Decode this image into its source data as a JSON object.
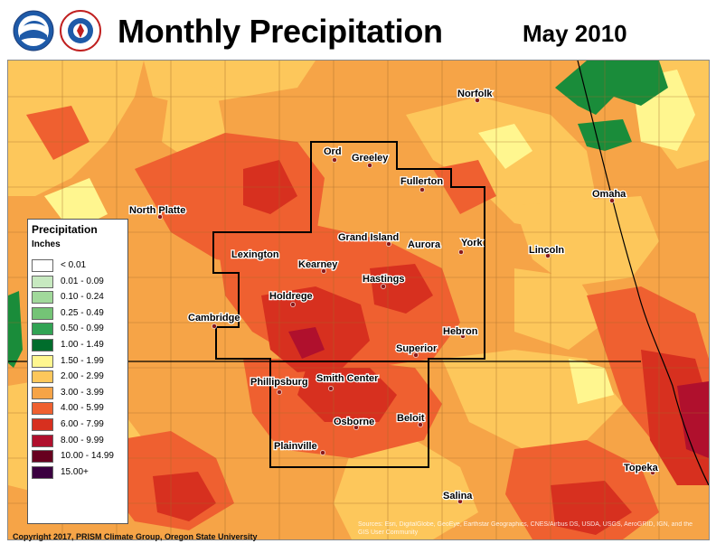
{
  "title": "Monthly Precipitation",
  "date": "May 2010",
  "legend": {
    "title": "Precipitation",
    "units": "Inches",
    "items": [
      {
        "label": "< 0.01",
        "color": "#ffffff"
      },
      {
        "label": "0.01 - 0.09",
        "color": "#c7e9c0"
      },
      {
        "label": "0.10 - 0.24",
        "color": "#a1d99b"
      },
      {
        "label": "0.25 - 0.49",
        "color": "#74c476"
      },
      {
        "label": "0.50 - 0.99",
        "color": "#31a354"
      },
      {
        "label": "1.00 - 1.49",
        "color": "#006d2c"
      },
      {
        "label": "1.50 - 1.99",
        "color": "#fff68f"
      },
      {
        "label": "2.00 - 2.99",
        "color": "#fdc75b"
      },
      {
        "label": "3.00 - 3.99",
        "color": "#f6a447"
      },
      {
        "label": "4.00 - 5.99",
        "color": "#ef6030"
      },
      {
        "label": "6.00 - 7.99",
        "color": "#d7301f"
      },
      {
        "label": "8.00 - 9.99",
        "color": "#b0102d"
      },
      {
        "label": "10.00 - 14.99",
        "color": "#67001f"
      },
      {
        "label": "15.00+",
        "color": "#3b0040"
      }
    ]
  },
  "cities": [
    {
      "name": "Norfolk"
    },
    {
      "name": "Ord"
    },
    {
      "name": "Greeley"
    },
    {
      "name": "Fullerton"
    },
    {
      "name": "North Platte"
    },
    {
      "name": "Omaha"
    },
    {
      "name": "Grand Island"
    },
    {
      "name": "Aurora"
    },
    {
      "name": "York"
    },
    {
      "name": "Lexington"
    },
    {
      "name": "Kearney"
    },
    {
      "name": "Lincoln"
    },
    {
      "name": "Hastings"
    },
    {
      "name": "Holdrege"
    },
    {
      "name": "Cambridge"
    },
    {
      "name": "Hebron"
    },
    {
      "name": "Superior"
    },
    {
      "name": "Phillipsburg"
    },
    {
      "name": "Smith Center"
    },
    {
      "name": "Beloit"
    },
    {
      "name": "Osborne"
    },
    {
      "name": "Plainville"
    },
    {
      "name": "Topeka"
    },
    {
      "name": "Salina"
    }
  ],
  "copyright": "Copyright 2017, PRISM Climate Group, Oregon State University",
  "attribution": "Sources: Esri, DigitalGlobe, GeoEye, Earthstar Geographics, CNES/Airbus DS, USDA, USGS, AeroGRID, IGN, and the GIS User Community"
}
